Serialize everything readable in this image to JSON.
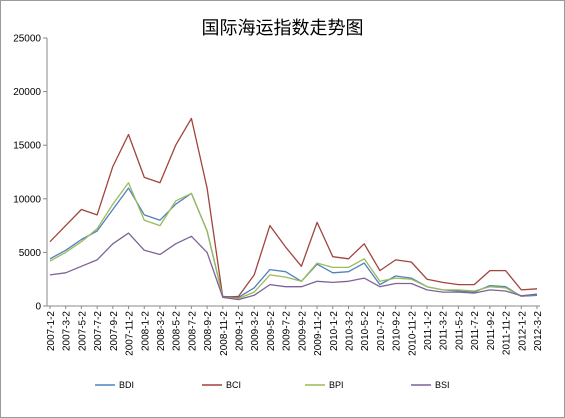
{
  "chart_data": {
    "type": "line",
    "title": "国际海运指数走势图",
    "xlabel": "",
    "ylabel": "",
    "ylim": [
      0,
      25000
    ],
    "yticks": [
      0,
      5000,
      10000,
      15000,
      20000,
      25000
    ],
    "grid": false,
    "legend_position": "bottom",
    "x": [
      "2007-1-2",
      "2007-3-2",
      "2007-5-2",
      "2007-7-2",
      "2007-9-2",
      "2007-11-2",
      "2008-1-2",
      "2008-3-2",
      "2008-5-2",
      "2008-7-2",
      "2008-9-2",
      "2008-11-2",
      "2009-1-2",
      "2009-3-2",
      "2009-5-2",
      "2009-7-2",
      "2009-9-2",
      "2009-11-2",
      "2010-1-2",
      "2010-3-2",
      "2010-5-2",
      "2010-7-2",
      "2010-9-2",
      "2010-11-2",
      "2011-1-2",
      "2011-3-2",
      "2011-5-2",
      "2011-7-2",
      "2011-9-2",
      "2011-11-2",
      "2012-1-2",
      "2012-3-2"
    ],
    "series": [
      {
        "name": "BDI",
        "color": "#4f81bd",
        "values": [
          4400,
          5200,
          6200,
          7000,
          9000,
          11000,
          8500,
          8000,
          9500,
          10500,
          7000,
          900,
          800,
          1700,
          3400,
          3200,
          2300,
          3900,
          3100,
          3200,
          4000,
          2000,
          2800,
          2600,
          1800,
          1500,
          1400,
          1300,
          1900,
          1800,
          900,
          1000
        ]
      },
      {
        "name": "BCI",
        "color": "#a0443e",
        "values": [
          6000,
          7500,
          9000,
          8500,
          13000,
          16000,
          12000,
          11500,
          15000,
          17500,
          11000,
          800,
          900,
          2900,
          7500,
          5500,
          3700,
          7800,
          4600,
          4400,
          5800,
          3300,
          4300,
          4100,
          2500,
          2200,
          2000,
          2000,
          3300,
          3300,
          1500,
          1600
        ]
      },
      {
        "name": "BPI",
        "color": "#9bbb59",
        "values": [
          4200,
          5000,
          6000,
          7200,
          9500,
          11500,
          8000,
          7500,
          9800,
          10500,
          7000,
          800,
          700,
          1300,
          2900,
          2700,
          2300,
          4000,
          3600,
          3600,
          4400,
          2300,
          2600,
          2500,
          1800,
          1500,
          1500,
          1400,
          1800,
          1700,
          900,
          1100
        ]
      },
      {
        "name": "BSI",
        "color": "#7e6496",
        "values": [
          2900,
          3100,
          3700,
          4300,
          5800,
          6800,
          5200,
          4800,
          5800,
          6500,
          5000,
          800,
          600,
          1000,
          2000,
          1800,
          1800,
          2300,
          2200,
          2300,
          2600,
          1800,
          2100,
          2100,
          1500,
          1300,
          1300,
          1200,
          1500,
          1400,
          950,
          1100
        ]
      }
    ]
  }
}
